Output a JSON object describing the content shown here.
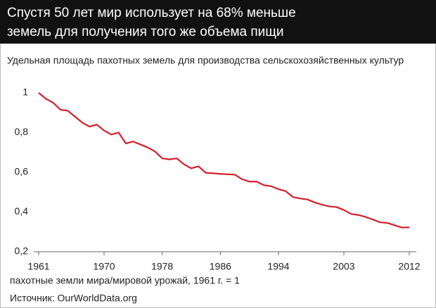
{
  "chart_data": {
    "type": "line",
    "title": "Спустя 50 лет мир использует на 68% меньше земель для получения того же объема пищи",
    "subtitle": "Удельная площадь пахотных земель для производства сельскохозяйственных культур",
    "x_label": "пахотные земли мира/мировой урожай, 1961 г. = 1",
    "source": "Источник: OurWorldData.org",
    "x": [
      1961,
      1962,
      1963,
      1964,
      1965,
      1966,
      1967,
      1968,
      1969,
      1970,
      1971,
      1972,
      1973,
      1974,
      1975,
      1976,
      1977,
      1978,
      1979,
      1980,
      1981,
      1982,
      1983,
      1984,
      1985,
      1986,
      1987,
      1988,
      1989,
      1990,
      1991,
      1992,
      1993,
      1994,
      1995,
      1996,
      1997,
      1998,
      1999,
      2000,
      2001,
      2002,
      2003,
      2004,
      2005,
      2006,
      2007,
      2008,
      2009,
      2010,
      2011,
      2012
    ],
    "values": [
      1.0,
      0.97,
      0.95,
      0.915,
      0.91,
      0.88,
      0.85,
      0.83,
      0.84,
      0.81,
      0.79,
      0.8,
      0.745,
      0.755,
      0.74,
      0.725,
      0.705,
      0.67,
      0.665,
      0.67,
      0.64,
      0.62,
      0.63,
      0.597,
      0.595,
      0.592,
      0.59,
      0.588,
      0.565,
      0.553,
      0.553,
      0.535,
      0.53,
      0.515,
      0.505,
      0.475,
      0.468,
      0.463,
      0.448,
      0.437,
      0.428,
      0.425,
      0.41,
      0.39,
      0.385,
      0.375,
      0.362,
      0.348,
      0.345,
      0.333,
      0.322,
      0.323
    ],
    "color": "#d21f2b",
    "xlim": [
      1961,
      2012
    ],
    "xticks": [
      1961,
      1970,
      1978,
      1986,
      1994,
      2003,
      2012
    ],
    "ylim": [
      0.2,
      1
    ],
    "yticks": [
      1,
      {
        "value": 0.8,
        "label": "0,8"
      },
      {
        "value": 0.6,
        "label": "0,6"
      },
      {
        "value": 0.4,
        "label": "0,4"
      },
      {
        "value": 0.2,
        "label": "0,2"
      }
    ]
  }
}
